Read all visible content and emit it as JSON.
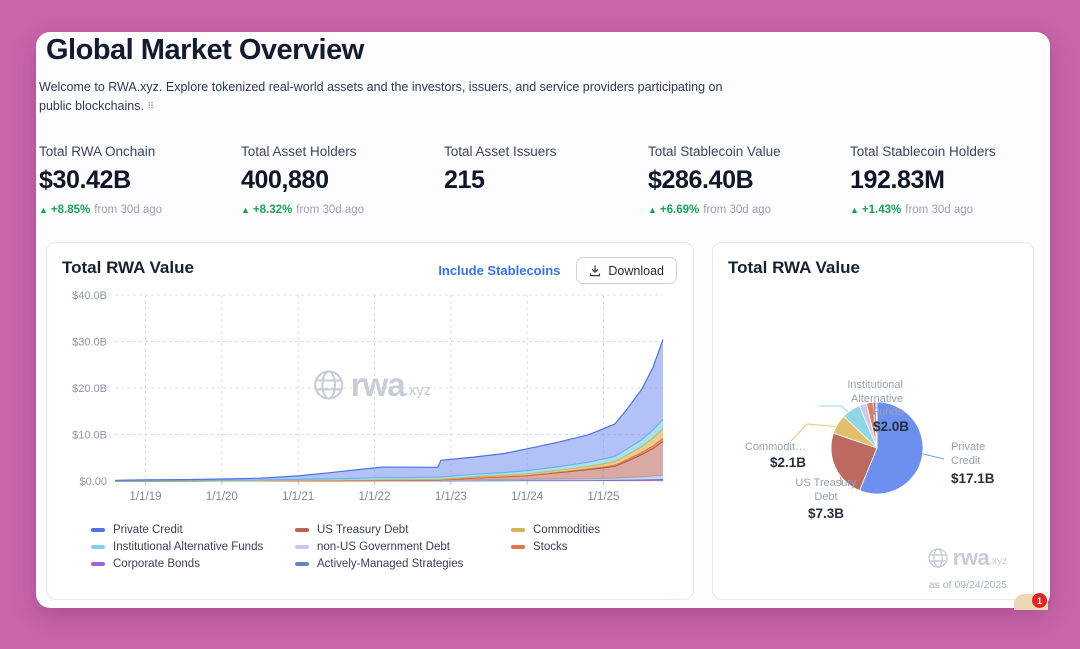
{
  "header": {
    "title": "Global Market Overview",
    "description_line1": "Welcome to RWA.xyz. Explore tokenized real-world assets and the investors, issuers, and service providers participating on",
    "description_line2": "public blockchains.",
    "description_glyph": "⠿"
  },
  "stats": [
    {
      "label": "Total RWA Onchain",
      "value": "$30.42B",
      "delta_pct": "+8.85%",
      "delta_suffix": "from 30d ago",
      "delta_dir": "up"
    },
    {
      "label": "Total Asset Holders",
      "value": "400,880",
      "delta_pct": "+8.32%",
      "delta_suffix": "from 30d ago",
      "delta_dir": "up"
    },
    {
      "label": "Total Asset Issuers",
      "value": "215",
      "delta_pct": "",
      "delta_suffix": "",
      "delta_dir": "none"
    },
    {
      "label": "Total Stablecoin Value",
      "value": "$286.40B",
      "delta_pct": "+6.69%",
      "delta_suffix": "from 30d ago",
      "delta_dir": "up"
    },
    {
      "label": "Total Stablecoin Holders",
      "value": "192.83M",
      "delta_pct": "+1.43%",
      "delta_suffix": "from 30d ago",
      "delta_dir": "up"
    }
  ],
  "left_card": {
    "title": "Total RWA Value",
    "toggle_label": "Include Stablecoins",
    "download_label": "Download",
    "watermark_main": "rwa",
    "watermark_suffix": ".xyz"
  },
  "right_card": {
    "title": "Total RWA Value",
    "watermark_main": "rwa",
    "watermark_suffix": ".xyz",
    "as_of": "as of 09/24/2025"
  },
  "colors": {
    "accent_blue": "#3273ef",
    "positive_green": "#17a254",
    "background_pink": "#c965ab"
  },
  "chart_data": [
    {
      "type": "area",
      "title": "Total RWA Value",
      "stacked": true,
      "grid": true,
      "legend_position": "bottom",
      "xlabel": "",
      "ylabel": "",
      "x_domain": [
        2018.6,
        2025.78
      ],
      "ylim": [
        0,
        40
      ],
      "y_ticks": [
        {
          "label": "$40.0B",
          "value": 40
        },
        {
          "label": "$30.0B",
          "value": 30
        },
        {
          "label": "$20.0B",
          "value": 20
        },
        {
          "label": "$10.0B",
          "value": 10
        },
        {
          "label": "$0.00",
          "value": 0
        }
      ],
      "x_ticks": [
        {
          "label": "1/1/19",
          "value": 2019
        },
        {
          "label": "1/1/20",
          "value": 2020
        },
        {
          "label": "1/1/21",
          "value": 2021
        },
        {
          "label": "1/1/22",
          "value": 2022
        },
        {
          "label": "1/1/23",
          "value": 2023
        },
        {
          "label": "1/1/24",
          "value": 2024
        },
        {
          "label": "1/1/25",
          "value": 2025
        }
      ],
      "x": [
        2018.6,
        2019,
        2019.5,
        2020,
        2020.5,
        2021,
        2021.4,
        2021.8,
        2022.1,
        2022.5,
        2022.83,
        2022.87,
        2023.3,
        2023.7,
        2024,
        2024.4,
        2024.8,
        2025,
        2025.15,
        2025.3,
        2025.5,
        2025.65,
        2025.78
      ],
      "series": [
        {
          "name": "Corporate Bonds",
          "color": "#9250c4",
          "fill": "rgba(171,108,216,0.85)",
          "values": [
            0,
            0,
            0.01,
            0.02,
            0.02,
            0.03,
            0.04,
            0.05,
            0.05,
            0.05,
            0.05,
            0.05,
            0.07,
            0.08,
            0.1,
            0.1,
            0.12,
            0.14,
            0.15,
            0.18,
            0.22,
            0.26,
            0.3
          ]
        },
        {
          "name": "Actively-Managed Strategies",
          "color": "#5d86b5",
          "fill": "rgba(121,154,196,0.85)",
          "values": [
            0,
            0,
            0,
            0,
            0,
            0.01,
            0.01,
            0.02,
            0.02,
            0.02,
            0.02,
            0.02,
            0.03,
            0.03,
            0.04,
            0.05,
            0.06,
            0.08,
            0.08,
            0.09,
            0.1,
            0.11,
            0.12
          ]
        },
        {
          "name": "non-US Government Debt",
          "color": "#b3b9e0",
          "fill": "rgba(203,207,238,0.9)",
          "values": [
            0,
            0,
            0,
            0,
            0,
            0.02,
            0.03,
            0.03,
            0.04,
            0.04,
            0.04,
            0.04,
            0.1,
            0.15,
            0.2,
            0.25,
            0.3,
            0.32,
            0.35,
            0.45,
            0.55,
            0.68,
            0.8
          ]
        },
        {
          "name": "US Treasury Debt",
          "color": "#a34a42",
          "fill": "rgba(186,99,88,0.55)",
          "values": [
            0,
            0,
            0,
            0,
            0,
            0,
            0,
            0,
            0.02,
            0.05,
            0.08,
            0.1,
            0.45,
            0.65,
            0.8,
            1.4,
            2.0,
            2.3,
            2.6,
            3.5,
            4.8,
            6.0,
            7.3
          ]
        },
        {
          "name": "Stocks",
          "color": "#d96540",
          "fill": "rgba(232,122,80,0.8)",
          "values": [
            0,
            0,
            0,
            0,
            0,
            0,
            0,
            0,
            0,
            0,
            0,
            0,
            0.02,
            0.03,
            0.05,
            0.08,
            0.15,
            0.2,
            0.25,
            0.35,
            0.45,
            0.55,
            0.7
          ]
        },
        {
          "name": "Commodities",
          "color": "#cfa84e",
          "fill": "rgba(224,190,100,0.75)",
          "values": [
            0,
            0,
            0,
            0.02,
            0.03,
            0.08,
            0.1,
            0.12,
            0.15,
            0.18,
            0.2,
            0.2,
            0.28,
            0.32,
            0.38,
            0.45,
            0.55,
            0.7,
            0.8,
            1.0,
            1.3,
            1.7,
            2.1
          ]
        },
        {
          "name": "Institutional Alternative Funds",
          "color": "#66c6dc",
          "fill": "rgba(150,218,232,0.8)",
          "values": [
            0.05,
            0.08,
            0.1,
            0.12,
            0.15,
            0.2,
            0.28,
            0.35,
            0.4,
            0.42,
            0.45,
            0.45,
            0.5,
            0.55,
            0.65,
            0.7,
            0.85,
            1.0,
            1.05,
            1.2,
            1.45,
            1.7,
            2.0
          ]
        },
        {
          "name": "Private Credit",
          "color": "#4c74e0",
          "fill": "rgba(115,143,240,0.55)",
          "values": [
            0.1,
            0.15,
            0.2,
            0.28,
            0.4,
            0.75,
            1.3,
            1.9,
            2.3,
            2.2,
            2.1,
            3.6,
            3.7,
            4.1,
            4.7,
            5.3,
            5.9,
            6.5,
            7.0,
            8.5,
            10.8,
            13.5,
            17.1
          ]
        }
      ],
      "legend": [
        {
          "label": "Private Credit",
          "color": "#4c74e0"
        },
        {
          "label": "Institutional Alternative Funds",
          "color": "#7fd3e8"
        },
        {
          "label": "Corporate Bonds",
          "color": "#a563d6"
        },
        {
          "label": "US Treasury Debt",
          "color": "#bf5f55"
        },
        {
          "label": "non-US Government Debt",
          "color": "#c5cbec"
        },
        {
          "label": "Actively-Managed Strategies",
          "color": "#6089c0"
        },
        {
          "label": "Commodities",
          "color": "#d4b25e"
        },
        {
          "label": "Stocks",
          "color": "#e8734d"
        }
      ]
    },
    {
      "type": "pie",
      "title": "Total RWA Value",
      "as_of": "as of 09/24/2025",
      "slices": [
        {
          "label": "Private Credit",
          "display_label": "Private\nCredit",
          "value": 17.1,
          "value_label": "$17.1B",
          "color": "#6d8ff0"
        },
        {
          "label": "US Treasury Debt",
          "display_label": "US Treasury\nDebt",
          "value": 7.3,
          "value_label": "$7.3B",
          "color": "#bc6a60"
        },
        {
          "label": "Commodities",
          "display_label": "Commodit…",
          "value": 2.1,
          "value_label": "$2.1B",
          "color": "#e2c06b"
        },
        {
          "label": "Institutional Alternative Funds",
          "display_label": "Institutional\nAlternative\nFunds",
          "value": 2.0,
          "value_label": "$2.0B",
          "color": "#8fd7e6"
        },
        {
          "label": "non-US Government Debt",
          "display_label": "",
          "value": 0.8,
          "value_label": "",
          "color": "#c9cdeb"
        },
        {
          "label": "Stocks",
          "display_label": "",
          "value": 0.7,
          "value_label": "",
          "color": "#e87a50"
        },
        {
          "label": "Corporate Bonds",
          "display_label": "",
          "value": 0.3,
          "value_label": "",
          "color": "#a563d6"
        },
        {
          "label": "Actively-Managed Strategies",
          "display_label": "",
          "value": 0.12,
          "value_label": "",
          "color": "#6b93c4"
        }
      ]
    }
  ],
  "chat": {
    "badge": "1"
  }
}
